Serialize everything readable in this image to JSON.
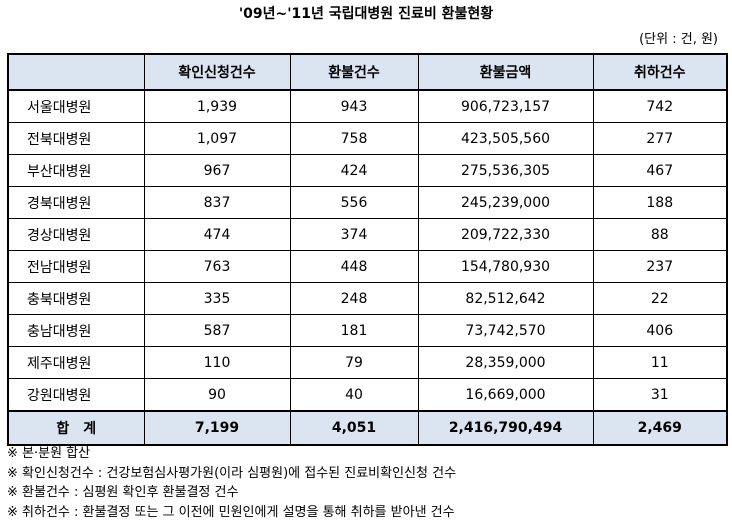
{
  "title": "'09년~'11년 국립대병원 진료비 환불현황",
  "unit": "(단위 : 건, 원)",
  "table": {
    "headers": [
      "",
      "확인신청건수",
      "환불건수",
      "환불금액",
      "취하건수"
    ],
    "rows": [
      {
        "name": "서울대병원",
        "requests": "1,939",
        "refunds": "943",
        "amount": "906,723,157",
        "withdrawn": "742"
      },
      {
        "name": "전북대병원",
        "requests": "1,097",
        "refunds": "758",
        "amount": "423,505,560",
        "withdrawn": "277"
      },
      {
        "name": "부산대병원",
        "requests": "967",
        "refunds": "424",
        "amount": "275,536,305",
        "withdrawn": "467"
      },
      {
        "name": "경북대병원",
        "requests": "837",
        "refunds": "556",
        "amount": "245,239,000",
        "withdrawn": "188"
      },
      {
        "name": "경상대병원",
        "requests": "474",
        "refunds": "374",
        "amount": "209,722,330",
        "withdrawn": "88"
      },
      {
        "name": "전남대병원",
        "requests": "763",
        "refunds": "448",
        "amount": "154,780,930",
        "withdrawn": "237"
      },
      {
        "name": "충북대병원",
        "requests": "335",
        "refunds": "248",
        "amount": "82,512,642",
        "withdrawn": "22"
      },
      {
        "name": "충남대병원",
        "requests": "587",
        "refunds": "181",
        "amount": "73,742,570",
        "withdrawn": "406"
      },
      {
        "name": "제주대병원",
        "requests": "110",
        "refunds": "79",
        "amount": "28,359,000",
        "withdrawn": "11"
      },
      {
        "name": "강원대병원",
        "requests": "90",
        "refunds": "40",
        "amount": "16,669,000",
        "withdrawn": "31"
      }
    ],
    "total": {
      "label": "합계",
      "requests": "7,199",
      "refunds": "4,051",
      "amount": "2,416,790,494",
      "withdrawn": "2,469"
    }
  },
  "notes": [
    "※ 본·분원 합산",
    "※ 확인신청건수 : 건강보험심사평가원(이라 심평원)에 접수된 진료비확인신청 건수",
    "※ 환불건수 : 심평원 확인후 환불결정 건수",
    "※ 취하건수 : 환불결정 또는 그 이전에 민원인에게 설명을 통해 취하를 받아낸 건수"
  ],
  "colors": {
    "header_bg": "#dbe5f1",
    "border": "#000000"
  }
}
